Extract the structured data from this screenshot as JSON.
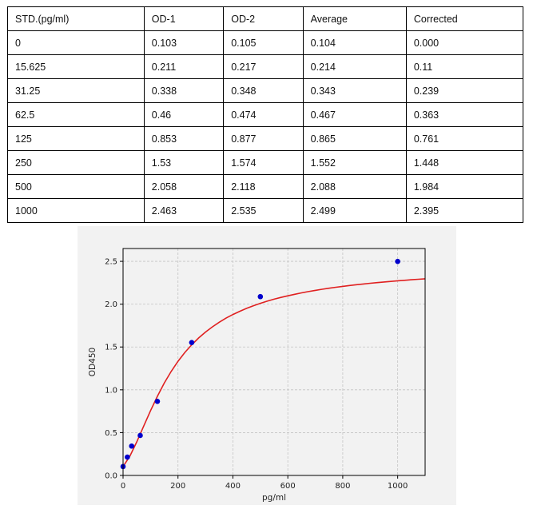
{
  "table": {
    "headers": [
      "STD.(pg/ml)",
      "OD-1",
      "OD-2",
      "Average",
      "Corrected"
    ],
    "rows": [
      [
        "0",
        "0.103",
        "0.105",
        "0.104",
        "0.000"
      ],
      [
        "15.625",
        "0.211",
        "0.217",
        "0.214",
        "0.11"
      ],
      [
        "31.25",
        "0.338",
        "0.348",
        "0.343",
        "0.239"
      ],
      [
        "62.5",
        "0.46",
        "0.474",
        "0.467",
        "0.363"
      ],
      [
        "125",
        "0.853",
        "0.877",
        "0.865",
        "0.761"
      ],
      [
        "250",
        "1.53",
        "1.574",
        "1.552",
        "1.448"
      ],
      [
        "500",
        "2.058",
        "2.118",
        "2.088",
        "1.984"
      ],
      [
        "1000",
        "2.463",
        "2.535",
        "2.499",
        "2.395"
      ]
    ]
  },
  "chart_data": {
    "type": "scatter",
    "title": "",
    "xlabel": "pg/ml",
    "ylabel": "OD450",
    "xlim": [
      0,
      1100
    ],
    "ylim": [
      0,
      2.65
    ],
    "xticks": [
      0,
      200,
      400,
      600,
      800,
      1000
    ],
    "yticks": [
      0.0,
      0.5,
      1.0,
      1.5,
      2.0,
      2.5
    ],
    "ytick_labels": [
      "0.0",
      "0.5",
      "1.0",
      "1.5",
      "2.0",
      "2.5"
    ],
    "grid": true,
    "points": {
      "x": [
        0,
        15.625,
        31.25,
        62.5,
        125,
        250,
        500,
        1000
      ],
      "y": [
        0.104,
        0.214,
        0.343,
        0.467,
        0.865,
        1.552,
        2.088,
        2.499
      ],
      "color": "#0000cc"
    },
    "fit_curve": {
      "x": [
        0,
        25,
        50,
        75,
        100,
        125,
        150,
        175,
        200,
        225,
        250,
        275,
        300,
        325,
        350,
        375,
        400,
        425,
        450,
        475,
        500,
        525,
        550,
        575,
        600,
        625,
        650,
        675,
        700,
        725,
        750,
        775,
        800,
        825,
        850,
        875,
        900,
        925,
        950,
        975,
        1000,
        1025,
        1050,
        1075,
        1100
      ],
      "y": [
        0.104,
        0.227,
        0.393,
        0.576,
        0.757,
        0.925,
        1.078,
        1.213,
        1.332,
        1.436,
        1.526,
        1.605,
        1.674,
        1.735,
        1.789,
        1.837,
        1.879,
        1.917,
        1.951,
        1.982,
        2.01,
        2.035,
        2.058,
        2.079,
        2.098,
        2.115,
        2.132,
        2.147,
        2.161,
        2.174,
        2.186,
        2.197,
        2.208,
        2.218,
        2.227,
        2.236,
        2.244,
        2.252,
        2.259,
        2.266,
        2.273,
        2.279,
        2.285,
        2.291,
        2.296
      ],
      "color": "#e02020"
    }
  }
}
